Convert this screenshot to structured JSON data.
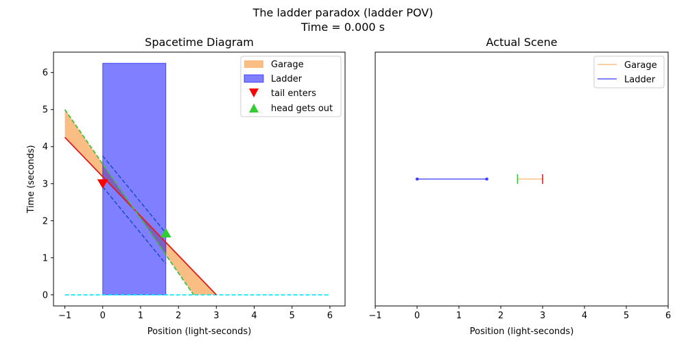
{
  "figure": {
    "title_line1": "The ladder paradox (ladder POV)",
    "title_line2": "Time = 0.000 s"
  },
  "colors": {
    "garage": "#f9b36e",
    "ladder": "#0000ff",
    "tail_line": "#e11a1a",
    "head_line": "#3fc13f",
    "now_line": "#00e5ff",
    "garage_line": "#fbbf80"
  },
  "chart_data": [
    {
      "type": "area",
      "title": "Spacetime Diagram",
      "xlabel": "Position (light-seconds)",
      "ylabel": "Time (seconds)",
      "xlim": [
        -1.3,
        6.4
      ],
      "ylim": [
        -0.3,
        6.55
      ],
      "xticks": [
        -1,
        0,
        1,
        2,
        3,
        4,
        5,
        6
      ],
      "yticks": [
        0,
        1,
        2,
        3,
        4,
        5,
        6
      ],
      "legend_position": "top-right",
      "legend": [
        "Garage",
        "Ladder",
        "tail enters",
        "head gets out"
      ],
      "ladder_band": {
        "x": [
          0,
          1.667
        ],
        "t": [
          0,
          6.25
        ]
      },
      "garage_tail_line": {
        "x": [
          -1,
          3
        ],
        "t": [
          4.25,
          0
        ]
      },
      "garage_head_line": {
        "x": [
          -1,
          2.4
        ],
        "t": [
          5.0,
          0
        ]
      },
      "ladder_back_dashed": {
        "x": [
          0,
          1.667
        ],
        "t": [
          3.75,
          1.667
        ]
      },
      "ladder_front_dashed": {
        "x": [
          0,
          1.667
        ],
        "t": [
          2.917,
          0.833
        ]
      },
      "now_line": {
        "x": [
          -1,
          6
        ],
        "t": 0
      },
      "events": [
        {
          "name": "tail enters",
          "x": 0,
          "t": 3.0,
          "marker": "triangle-down"
        },
        {
          "name": "head gets out",
          "x": 1.667,
          "t": 1.667,
          "marker": "triangle-up"
        }
      ]
    },
    {
      "type": "line",
      "title": "Actual Scene",
      "xlabel": "Position (light-seconds)",
      "xlim": [
        -1,
        6
      ],
      "xticks": [
        -1,
        0,
        1,
        2,
        3,
        4,
        5,
        6
      ],
      "legend_position": "top-right",
      "legend": [
        "Garage",
        "Ladder"
      ],
      "y_level": 3.1,
      "ladder_segment": [
        0,
        1.667
      ],
      "garage_segment": [
        2.4,
        3.0
      ]
    }
  ]
}
